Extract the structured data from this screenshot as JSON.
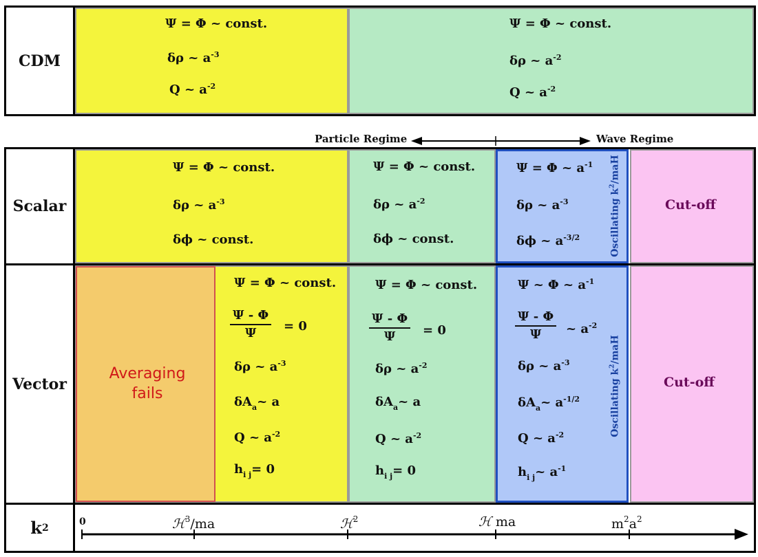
{
  "rows": {
    "cdm": "CDM",
    "scalar": "Scalar",
    "vector": "Vector",
    "k2": "k",
    "k2_exp": "2"
  },
  "regimes": {
    "particle": "Particle Regime",
    "wave": "Wave Regime"
  },
  "cdm": {
    "left": {
      "psi": "Ψ = Φ ~ const.",
      "drho": "δρ ~ a",
      "drho_exp": "-3",
      "q": "Q ~ a",
      "q_exp": "-2"
    },
    "right": {
      "psi": "Ψ = Φ ~ const.",
      "drho": "δρ ~ a",
      "drho_exp": "-2",
      "q": "Q ~ a",
      "q_exp": "-2"
    }
  },
  "scalar": {
    "c1": {
      "psi": "Ψ = Φ ~ const.",
      "drho": "δρ ~ a",
      "drho_exp": "-3",
      "dphi": "δϕ ~ const."
    },
    "c2": {
      "psi": "Ψ = Φ ~ const.",
      "drho": "δρ ~ a",
      "drho_exp": "-2",
      "dphi": "δϕ ~ const."
    },
    "c3": {
      "psi": "Ψ = Φ ~ a",
      "psi_exp": "-1",
      "drho": "δρ ~ a",
      "drho_exp": "-3",
      "dphi": "δϕ ~ a",
      "dphi_exp": "-3/2",
      "osc": "Oscillating k",
      "osc_exp": "2",
      "osc_tail": "/maH"
    },
    "cutoff": "Cut-off"
  },
  "vector": {
    "averaging": "Averaging fails",
    "c1": {
      "psi": "Ψ = Φ ~ const.",
      "frac_num": "Ψ - Φ",
      "frac_den": "Ψ",
      "frac_rhs": "= 0",
      "drho": "δρ ~ a",
      "drho_exp": "-3",
      "dA": "δA",
      "dA_sub": "a",
      "dA_rhs": "~ a",
      "q": "Q ~ a",
      "q_exp": "-2",
      "h": "h",
      "h_sub": "i j",
      "h_rhs": "= 0"
    },
    "c2": {
      "psi": "Ψ = Φ ~ const.",
      "frac_num": "Ψ - Φ",
      "frac_den": "Ψ",
      "frac_rhs": "= 0",
      "drho": "δρ ~ a",
      "drho_exp": "-2",
      "dA": "δA",
      "dA_sub": "a",
      "dA_rhs": "~ a",
      "q": "Q ~ a",
      "q_exp": "-2",
      "h": "h",
      "h_sub": "i j",
      "h_rhs": "= 0"
    },
    "c3": {
      "psi": "Ψ ~ Φ ~ a",
      "psi_exp": "-1",
      "frac_num": "Ψ - Φ",
      "frac_den": "Ψ",
      "frac_rhs": "~ a",
      "frac_exp": "-2",
      "drho": "δρ ~ a",
      "drho_exp": "-3",
      "dA": "δA",
      "dA_sub": "a",
      "dA_rhs": "~ a",
      "dA_exp": "-1/2",
      "q": "Q ~ a",
      "q_exp": "-2",
      "h": "h",
      "h_sub": "i j",
      "h_rhs": "~ a",
      "h_exp": "-1",
      "osc": "Oscillating k",
      "osc_exp": "2",
      "osc_tail": "/maH"
    },
    "cutoff": "Cut-off"
  },
  "axis": {
    "zero": "0",
    "t1": "ℋ",
    "t1_exp": "3",
    "t1_tail": "/ma",
    "t2": "ℋ",
    "t2_exp": "2",
    "t3": "ℋ",
    "t3_tail": " ma",
    "t4": "m",
    "t4_exp": "2",
    "t4_mid": "a",
    "t4_exp2": "2"
  },
  "colors": {
    "yellow": "#f4f43c",
    "green": "#b6eac4",
    "blue": "#b0c8f8",
    "pink": "#fbc4f2",
    "orange": "#f4cb6c"
  }
}
